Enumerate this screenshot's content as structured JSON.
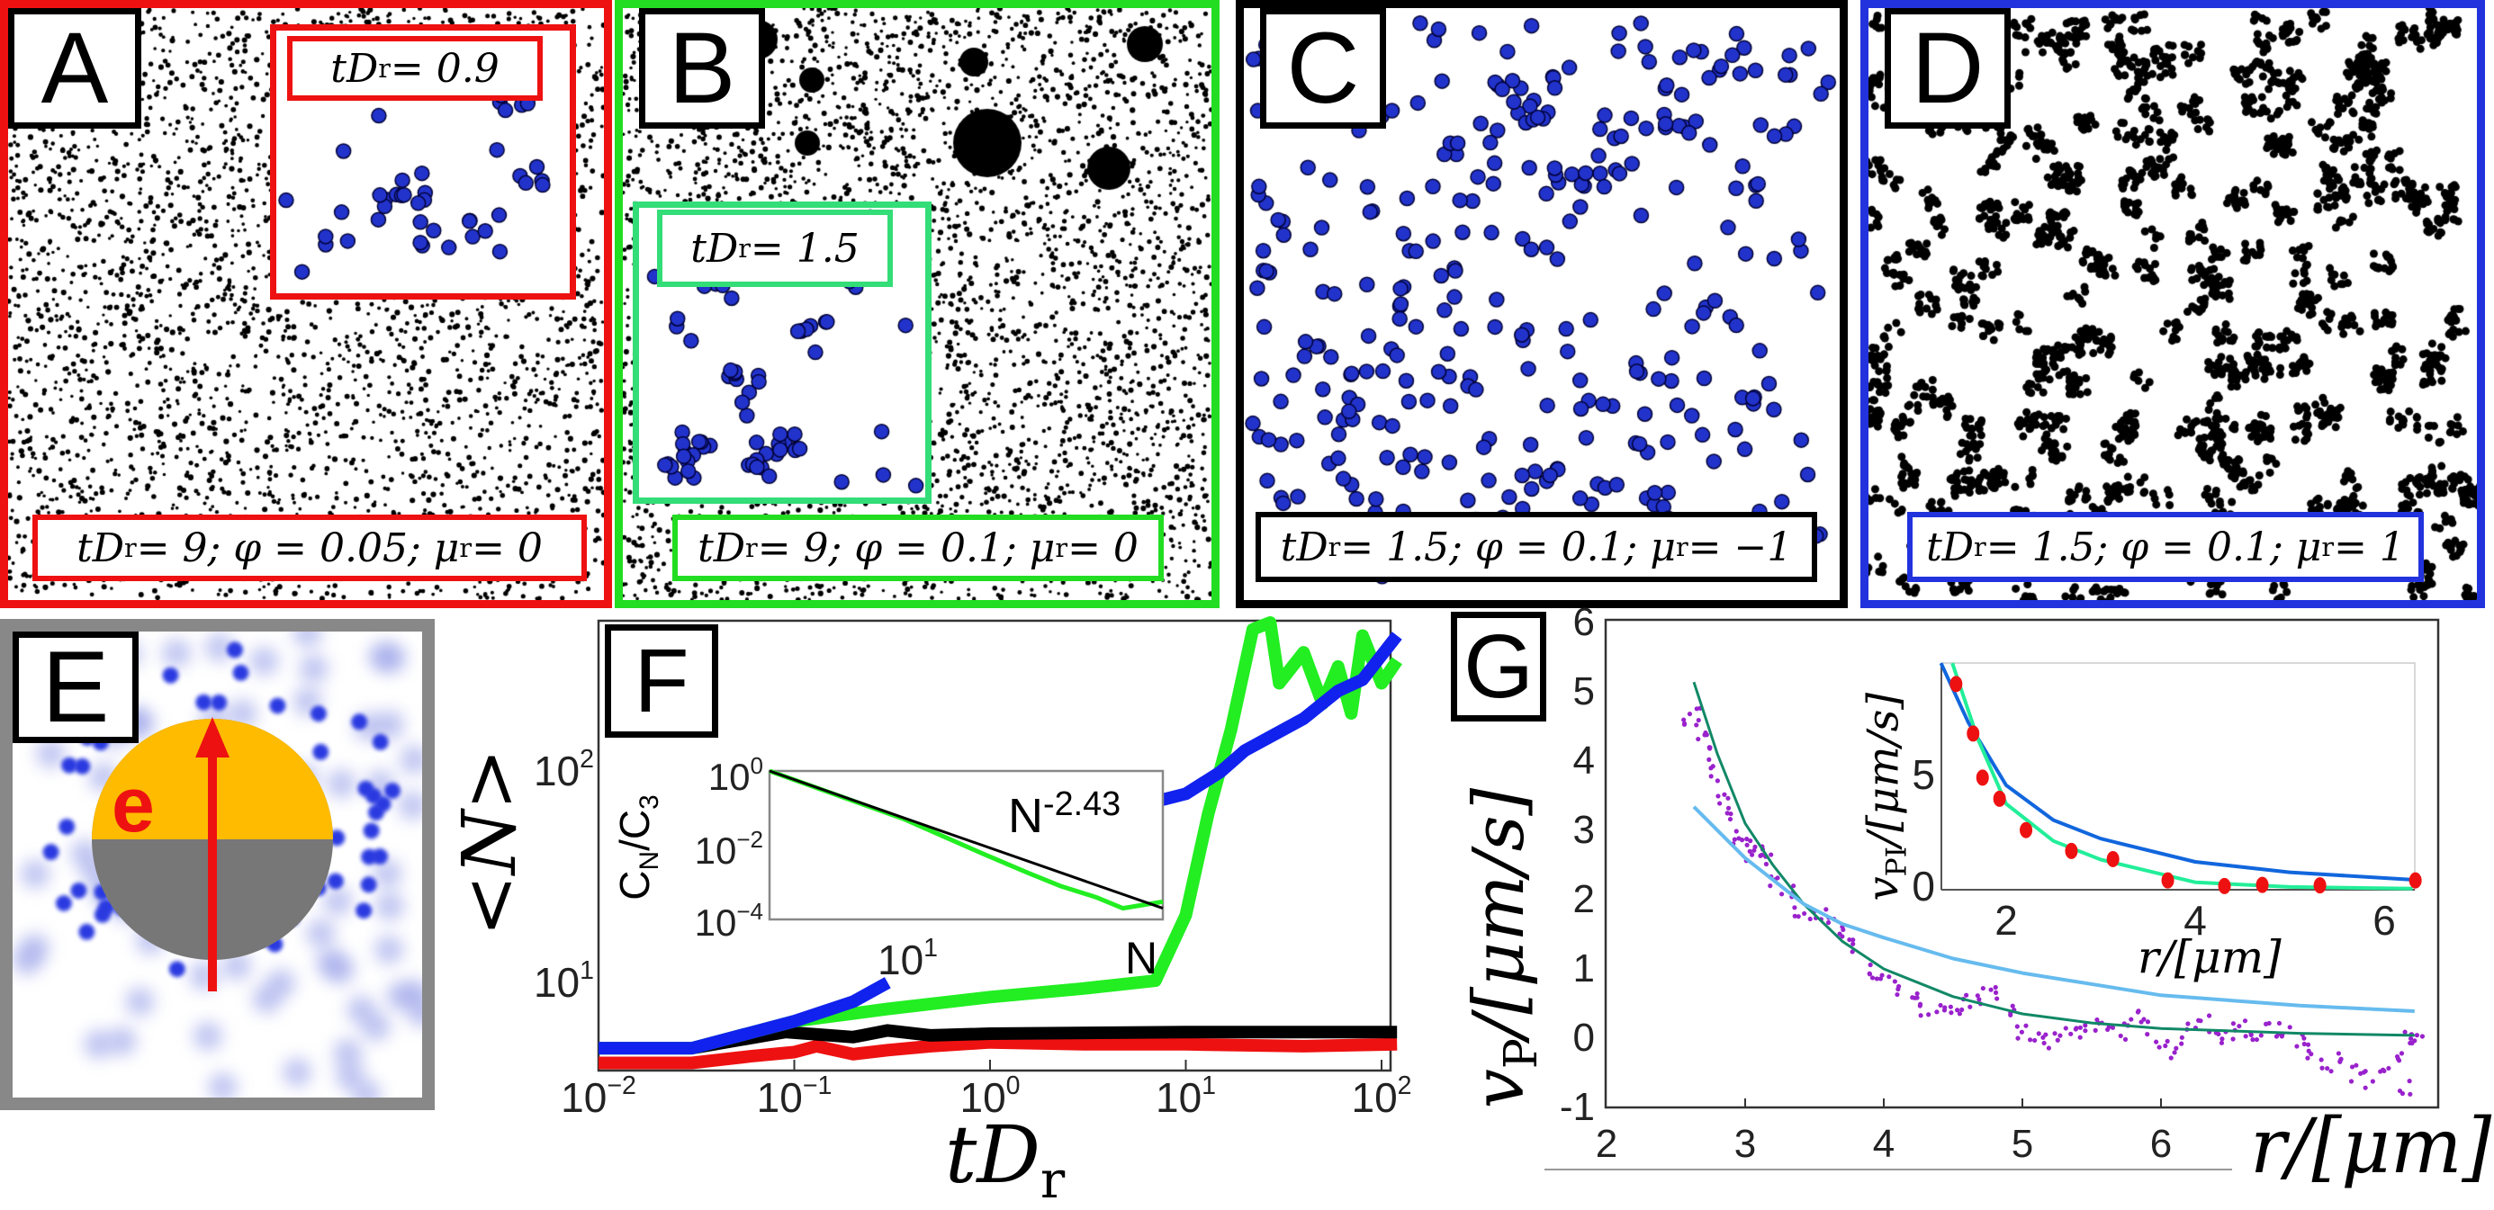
{
  "panels": {
    "A": {
      "letter": "A",
      "inset_label": "tD_r = 0.9",
      "label": "tD_r = 9; φ = 0.05; μ_r = 0",
      "border_color": "#ee1111"
    },
    "B": {
      "letter": "B",
      "inset_label": "tD_r = 1.5",
      "label": "tD_r = 9; φ = 0.1; μ_r = 0",
      "border_color": "#22dd22",
      "inset_color": "#33dd77"
    },
    "C": {
      "letter": "C",
      "label": "tD_r = 1.5; φ = 0.1; μ_r = −1",
      "border_color": "#000000"
    },
    "D": {
      "letter": "D",
      "label": "tD_r = 1.5; φ = 0.1; μ_r = 1",
      "border_color": "#2233dd"
    },
    "E": {
      "letter": "E",
      "vector_label": "e",
      "cap_color": "#ffbb00",
      "body_color": "#777777",
      "arrow_color": "#ee1111",
      "border_color": "#888888"
    },
    "F": {
      "letter": "F"
    },
    "G": {
      "letter": "G"
    }
  },
  "chart_data": [
    {
      "id": "F-main",
      "type": "line",
      "xlabel": "tD_r",
      "ylabel": "<N>",
      "xscale": "log",
      "yscale": "log",
      "xlim": [
        0.01,
        130
      ],
      "ylim": [
        3.7,
        490
      ],
      "xticks": [
        "10^-2",
        "10^-1",
        "10^0",
        "10^1",
        "10^2"
      ],
      "yticks": [
        "10^1",
        "10^2"
      ],
      "series": [
        {
          "color": "#ee1111",
          "points": [
            [
              0.01,
              4.0
            ],
            [
              0.03,
              4.0
            ],
            [
              0.06,
              4.3
            ],
            [
              0.1,
              4.5
            ],
            [
              0.13,
              4.8
            ],
            [
              0.2,
              4.4
            ],
            [
              0.3,
              4.6
            ],
            [
              0.5,
              4.8
            ],
            [
              1,
              5.0
            ],
            [
              3,
              4.9
            ],
            [
              10,
              4.9
            ],
            [
              40,
              4.8
            ],
            [
              120,
              4.9
            ]
          ]
        },
        {
          "color": "#000000",
          "points": [
            [
              0.01,
              4.7
            ],
            [
              0.03,
              4.7
            ],
            [
              0.09,
              5.6
            ],
            [
              0.2,
              5.3
            ],
            [
              0.3,
              5.7
            ],
            [
              0.5,
              5.4
            ],
            [
              1,
              5.5
            ],
            [
              10,
              5.6
            ],
            [
              120,
              5.6
            ]
          ]
        },
        {
          "color": "#22ee22",
          "points": [
            [
              0.01,
              4.7
            ],
            [
              0.03,
              4.7
            ],
            [
              0.1,
              6.3
            ],
            [
              0.3,
              7.2
            ],
            [
              1,
              8.2
            ],
            [
              3,
              9.0
            ],
            [
              7,
              9.8
            ],
            [
              10,
              20
            ],
            [
              13,
              60
            ],
            [
              17,
              150
            ],
            [
              22,
              450
            ],
            [
              27,
              490
            ],
            [
              30,
              250
            ],
            [
              40,
              350
            ],
            [
              50,
              200
            ],
            [
              60,
              300
            ],
            [
              70,
              180
            ],
            [
              80,
              420
            ],
            [
              100,
              250
            ],
            [
              120,
              320
            ]
          ]
        },
        {
          "color": "#1122ee",
          "points": [
            [
              0.01,
              4.7
            ],
            [
              0.03,
              4.7
            ],
            [
              0.1,
              6.3
            ],
            [
              0.2,
              7.8
            ],
            [
              0.3,
              9.6
            ],
            [
              7,
              69
            ],
            [
              10,
              75
            ],
            [
              15,
              95
            ],
            [
              20,
              120
            ],
            [
              40,
              170
            ],
            [
              60,
              230
            ],
            [
              80,
              260
            ],
            [
              120,
              420
            ]
          ]
        }
      ],
      "inset": {
        "type": "line",
        "xlabel": "N",
        "ylabel": "C_N/C_3",
        "xscale": "log",
        "yscale": "log",
        "xlim": [
          3,
          100
        ],
        "ylim": [
          0.0001,
          1
        ],
        "xticks": [
          "10^1"
        ],
        "yticks": [
          "10^0",
          "10^-2",
          "10^-4"
        ],
        "annotation": "N^-2.43",
        "series": [
          {
            "color": "#22ee22",
            "points": [
              [
                3,
                1
              ],
              [
                10,
                0.05
              ],
              [
                20,
                0.006
              ],
              [
                30,
                0.0018
              ],
              [
                40,
                0.0008
              ],
              [
                55,
                0.0004
              ],
              [
                70,
                0.0002
              ],
              [
                85,
                0.00025
              ],
              [
                100,
                0.0003
              ]
            ]
          },
          {
            "color": "#000000",
            "points": [
              [
                3,
                1
              ],
              [
                100,
                0.0002
              ]
            ]
          }
        ]
      }
    },
    {
      "id": "G-main",
      "type": "scatter",
      "xlabel": "r/[μm]",
      "ylabel": "v_P/[μm/s]",
      "xlim": [
        2,
        8
      ],
      "ylim": [
        -1,
        6
      ],
      "xticks": [
        "2",
        "3",
        "4",
        "5",
        "6"
      ],
      "yticks": [
        "6",
        "5",
        "4",
        "3",
        "2",
        "1",
        "0",
        "-1"
      ],
      "series": [
        {
          "color": "#9922cc",
          "kind": "scatter",
          "points": [
            [
              2.6,
              4.5
            ],
            [
              2.65,
              4.7
            ],
            [
              2.7,
              4.3
            ],
            [
              2.75,
              4.1
            ],
            [
              2.8,
              3.8
            ],
            [
              2.85,
              3.5
            ],
            [
              2.9,
              3.2
            ],
            [
              2.95,
              2.9
            ],
            [
              3.0,
              2.8
            ],
            [
              3.05,
              2.6
            ],
            [
              3.1,
              2.65
            ],
            [
              3.15,
              2.6
            ],
            [
              3.2,
              2.3
            ],
            [
              3.3,
              2.1
            ],
            [
              3.4,
              1.8
            ],
            [
              3.5,
              1.7
            ],
            [
              3.6,
              1.75
            ],
            [
              3.7,
              1.5
            ],
            [
              3.8,
              1.3
            ],
            [
              3.9,
              0.95
            ],
            [
              4.0,
              0.8
            ],
            [
              4.1,
              0.75
            ],
            [
              4.2,
              0.65
            ],
            [
              4.3,
              0.45
            ],
            [
              4.4,
              0.35
            ],
            [
              4.5,
              0.45
            ],
            [
              4.6,
              0.5
            ],
            [
              4.7,
              0.6
            ],
            [
              4.8,
              0.65
            ],
            [
              4.9,
              0.4
            ],
            [
              5.0,
              0.1
            ],
            [
              5.1,
              0.0
            ],
            [
              5.2,
              -0.05
            ],
            [
              5.3,
              0.05
            ],
            [
              5.4,
              0.1
            ],
            [
              5.5,
              0.2
            ],
            [
              5.6,
              0.15
            ],
            [
              5.7,
              0.1
            ],
            [
              5.8,
              0.3
            ],
            [
              5.9,
              0.15
            ],
            [
              6.0,
              -0.1
            ],
            [
              6.1,
              -0.2
            ],
            [
              6.2,
              0.1
            ],
            [
              6.3,
              0.2
            ],
            [
              6.4,
              0.05
            ],
            [
              6.5,
              0.1
            ],
            [
              6.6,
              0.15
            ],
            [
              6.7,
              0.1
            ],
            [
              6.8,
              0.15
            ],
            [
              6.9,
              0.1
            ],
            [
              7.0,
              0.0
            ],
            [
              7.1,
              -0.2
            ],
            [
              7.2,
              -0.4
            ],
            [
              7.3,
              -0.3
            ],
            [
              7.4,
              -0.5
            ],
            [
              7.5,
              -0.6
            ],
            [
              7.6,
              -0.45
            ],
            [
              7.7,
              -0.3
            ],
            [
              7.75,
              -0.7
            ],
            [
              7.8,
              0.0
            ],
            [
              7.85,
              0.05
            ]
          ]
        },
        {
          "color": "#118866",
          "kind": "line",
          "points": [
            [
              2.63,
              5.14
            ],
            [
              2.8,
              4.1
            ],
            [
              3.0,
              3.1
            ],
            [
              3.2,
              2.5
            ],
            [
              3.42,
              1.94
            ],
            [
              3.7,
              1.4
            ],
            [
              4.0,
              1.0
            ],
            [
              4.5,
              0.6
            ],
            [
              5.0,
              0.35
            ],
            [
              5.5,
              0.22
            ],
            [
              6.0,
              0.14
            ],
            [
              7.0,
              0.07
            ],
            [
              7.83,
              0.04
            ]
          ]
        },
        {
          "color": "#66bbee",
          "kind": "line",
          "points": [
            [
              2.63,
              3.34
            ],
            [
              3.0,
              2.6
            ],
            [
              3.42,
              1.94
            ],
            [
              3.7,
              1.65
            ],
            [
              4.0,
              1.45
            ],
            [
              4.5,
              1.15
            ],
            [
              5.0,
              0.94
            ],
            [
              6.0,
              0.62
            ],
            [
              7.0,
              0.47
            ],
            [
              7.83,
              0.39
            ]
          ]
        }
      ],
      "inset": {
        "type": "scatter",
        "xlabel": "r/[μm]",
        "ylabel": "v_PI/[μm/s]",
        "xlim": [
          1.3,
          6.35
        ],
        "ylim": [
          0,
          9.8
        ],
        "xticks": [
          "2",
          "4",
          "6"
        ],
        "yticks": [
          "5",
          "0"
        ],
        "series": [
          {
            "color": "#ee1111",
            "kind": "scatter",
            "points": [
              [
                1.47,
                8.86
              ],
              [
                1.65,
                6.73
              ],
              [
                1.75,
                4.83
              ],
              [
                1.93,
                3.92
              ],
              [
                2.21,
                2.57
              ],
              [
                2.69,
                1.67
              ],
              [
                3.13,
                1.32
              ],
              [
                3.71,
                0.4
              ],
              [
                4.31,
                0.16
              ],
              [
                4.71,
                0.21
              ],
              [
                5.32,
                0.19
              ],
              [
                6.33,
                0.4
              ]
            ]
          },
          {
            "color": "#1166dd",
            "kind": "line",
            "points": [
              [
                1.31,
                9.76
              ],
              [
                1.6,
                7.2
              ],
              [
                2.0,
                4.5
              ],
              [
                2.5,
                3.0
              ],
              [
                3.0,
                2.2
              ],
              [
                4.0,
                1.2
              ],
              [
                5.0,
                0.75
              ],
              [
                6.3,
                0.43
              ]
            ]
          },
          {
            "color": "#22ee99",
            "kind": "line",
            "points": [
              [
                1.43,
                9.76
              ],
              [
                1.7,
                6.5
              ],
              [
                2.0,
                3.7
              ],
              [
                2.5,
                2.1
              ],
              [
                3.0,
                1.3
              ],
              [
                4.0,
                0.32
              ],
              [
                5.0,
                0.12
              ],
              [
                6.3,
                0.05
              ]
            ]
          }
        ]
      }
    }
  ]
}
